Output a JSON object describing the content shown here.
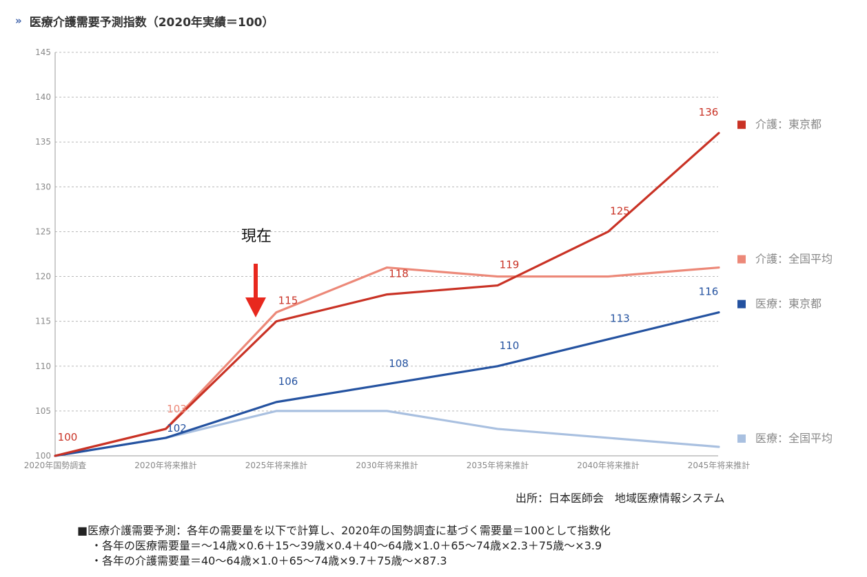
{
  "header": {
    "icon": "double-chevron-right-icon",
    "title": "医療介護需要予測指数（2020年実績＝100）"
  },
  "annotation": {
    "label": "現在",
    "icon": "down-arrow-icon",
    "color": "#e8281e"
  },
  "chart_data": {
    "type": "line",
    "categories": [
      "2020年国勢調査",
      "2020年将来推計",
      "2025年将来推計",
      "2030年将来推計",
      "2035年将来推計",
      "2040年将来推計",
      "2045年将来推計"
    ],
    "ylim": [
      100,
      145
    ],
    "yticks": [
      100,
      105,
      110,
      115,
      120,
      125,
      130,
      135,
      140,
      145
    ],
    "grid": true,
    "legend_position": "right",
    "series": [
      {
        "name": "介護：東京都",
        "color": "#c93225",
        "values": [
          100,
          103,
          115,
          118,
          119,
          125,
          136
        ],
        "labels": [
          "100",
          "",
          "115",
          "118",
          "119",
          "125",
          "136"
        ]
      },
      {
        "name": "介護：全国平均",
        "color": "#ec8878",
        "values": [
          100,
          103,
          116,
          121,
          120,
          120,
          121
        ],
        "labels": [
          "",
          "103",
          "",
          "",
          "",
          "",
          ""
        ]
      },
      {
        "name": "医療：東京都",
        "color": "#2452a0",
        "values": [
          100,
          102,
          106,
          108,
          110,
          113,
          116
        ],
        "labels": [
          "",
          "102",
          "106",
          "108",
          "110",
          "113",
          "116"
        ]
      },
      {
        "name": "医療：全国平均",
        "color": "#a9c0e0",
        "values": [
          100,
          102,
          105,
          105,
          103,
          102,
          101
        ],
        "labels": [
          "",
          "",
          "",
          "",
          "",
          "",
          ""
        ]
      }
    ]
  },
  "source": "出所：日本医師会　地域医療情報システム",
  "notes": [
    "■医療介護需要予測：各年の需要量を以下で計算し、2020年の国勢調査に基づく需要量＝100として指数化",
    "・各年の医療需要量＝～14歳×0.6＋15～39歳×0.4＋40～64歳×1.0＋65～74歳×2.3＋75歳～×3.9",
    "・各年の介護需要量＝40～64歳×1.0＋65～74歳×9.7＋75歳～×87.3"
  ]
}
